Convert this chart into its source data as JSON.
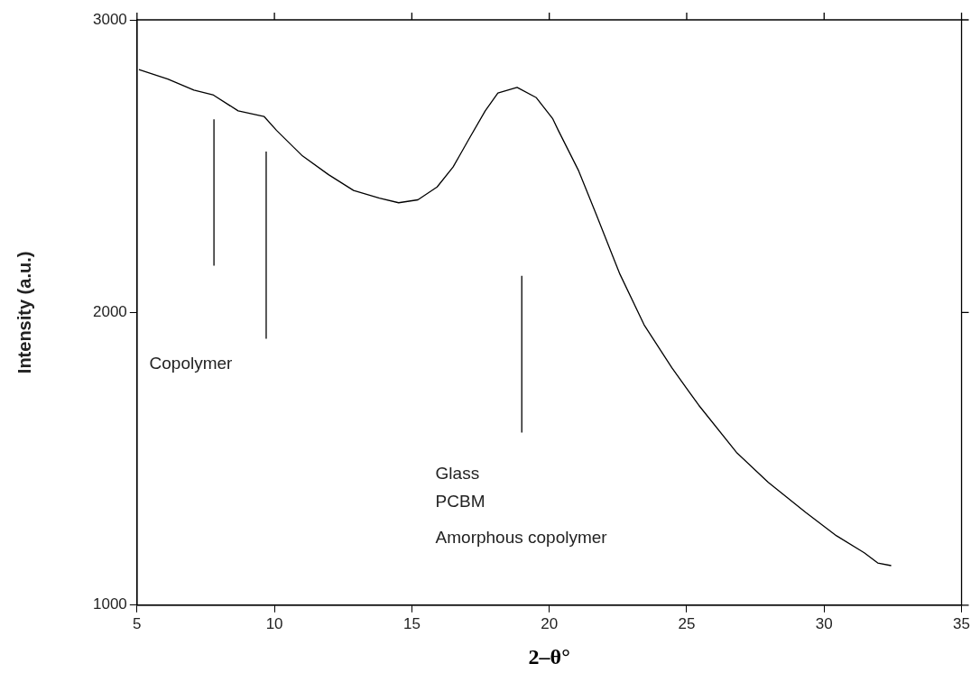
{
  "chart_data": {
    "type": "line",
    "xlabel": "2–θ°",
    "ylabel": "Intensity (a.u.)",
    "xlim": [
      5,
      35
    ],
    "xticks": [
      5,
      10,
      15,
      20,
      25,
      30,
      35
    ],
    "ylim": [
      1000,
      3000
    ],
    "yticks": [
      1000,
      2000,
      3000
    ],
    "grid": false,
    "legend": false,
    "marker": "none",
    "line_style": "solid",
    "series": [
      {
        "color": "#000000",
        "x": [
          5.07,
          6.12,
          7.07,
          7.76,
          8.68,
          9.62,
          10.08,
          11.02,
          11.97,
          12.88,
          13.82,
          14.52,
          15.22,
          15.92,
          16.5,
          17.08,
          17.67,
          18.13,
          18.83,
          19.53,
          20.12,
          20.33,
          21.07,
          21.7,
          22.57,
          23.45,
          24.46,
          25.44,
          26.81,
          27.96,
          29.33,
          30.45,
          31.46,
          31.95,
          32.44
        ],
        "values": [
          2830,
          2798,
          2760,
          2744,
          2689,
          2670,
          2622,
          2535,
          2471,
          2417,
          2391,
          2375,
          2385,
          2429,
          2497,
          2593,
          2689,
          2750,
          2769,
          2734,
          2663,
          2622,
          2484,
          2337,
          2131,
          1958,
          1811,
          1683,
          1522,
          1420,
          1317,
          1237,
          1179,
          1144,
          1135
        ]
      },
      {
        "color": "#000000",
        "x": [
          7.8,
          7.8
        ],
        "values": [
          2160,
          2660
        ]
      },
      {
        "color": "#000000",
        "x": [
          9.7,
          9.7
        ],
        "values": [
          1910,
          2550
        ]
      },
      {
        "color": "#000000",
        "x": [
          19.0,
          19.0
        ],
        "values": [
          1590,
          2125
        ]
      }
    ],
    "annotations": [
      "Copolymer",
      "Glass",
      "PCBM",
      "Amorphous copolymer"
    ]
  }
}
